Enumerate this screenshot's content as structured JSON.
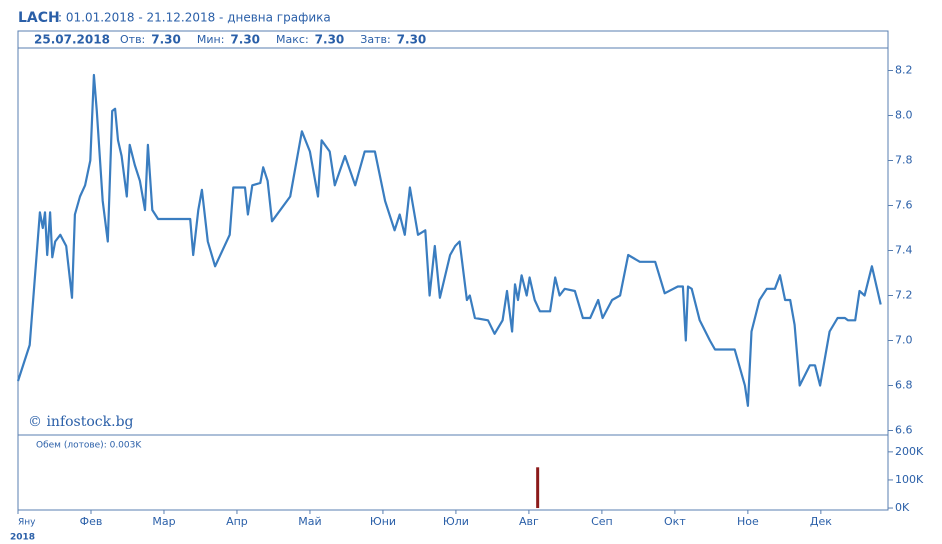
{
  "header": {
    "symbol": "LACH",
    "period": ": 01.01.2018 - 21.12.2018 - дневна графика",
    "date": "25.07.2018",
    "fields": [
      {
        "label": "Отв:",
        "value": "7.30"
      },
      {
        "label": "Мин:",
        "value": "7.30"
      },
      {
        "label": "Макс:",
        "value": "7.30"
      },
      {
        "label": "Затв:",
        "value": "7.30"
      }
    ],
    "watermark": "© infostock.bg"
  },
  "chart_data": [
    {
      "type": "line",
      "color": "#3a7dc0",
      "year_label": "2018",
      "xlim": [
        0,
        11.92
      ],
      "xticks": [
        {
          "value": 0,
          "label": "Яну"
        },
        {
          "value": 1,
          "label": "Фев"
        },
        {
          "value": 2,
          "label": "Мар"
        },
        {
          "value": 3,
          "label": "Апр"
        },
        {
          "value": 4,
          "label": "Май"
        },
        {
          "value": 5,
          "label": "Юни"
        },
        {
          "value": 6,
          "label": "Юли"
        },
        {
          "value": 7,
          "label": "Авг"
        },
        {
          "value": 8,
          "label": "Сеп"
        },
        {
          "value": 9,
          "label": "Окт"
        },
        {
          "value": 10,
          "label": "Ное"
        },
        {
          "value": 11,
          "label": "Дек"
        }
      ],
      "ylim": [
        6.58,
        8.3
      ],
      "yticks": [
        6.6,
        6.8,
        {
          "value": 7,
          "label": "7.0"
        },
        7.2,
        7.4,
        7.6,
        7.8,
        {
          "value": 8,
          "label": "8.0"
        },
        8.2
      ],
      "x": [
        0,
        0.16,
        0.3,
        0.34,
        0.37,
        0.4,
        0.44,
        0.47,
        0.51,
        0.58,
        0.66,
        0.74,
        0.78,
        0.85,
        0.92,
        0.99,
        1.04,
        1.08,
        1.16,
        1.23,
        1.29,
        1.33,
        1.37,
        1.42,
        1.49,
        1.53,
        1.6,
        1.67,
        1.74,
        1.78,
        1.84,
        1.92,
        2.36,
        2.4,
        2.47,
        2.52,
        2.6,
        2.7,
        2.9,
        2.95,
        3.11,
        3.15,
        3.21,
        3.32,
        3.36,
        3.42,
        3.48,
        3.73,
        3.89,
        4.0,
        4.11,
        4.16,
        4.27,
        4.34,
        4.48,
        4.62,
        4.75,
        4.89,
        5.03,
        5.16,
        5.23,
        5.3,
        5.37,
        5.48,
        5.58,
        5.64,
        5.71,
        5.78,
        5.92,
        5.99,
        6.05,
        6.15,
        6.19,
        6.26,
        6.44,
        6.53,
        6.64,
        6.7,
        6.77,
        6.81,
        6.85,
        6.9,
        6.97,
        7.01,
        7.08,
        7.15,
        7.29,
        7.36,
        7.42,
        7.49,
        7.63,
        7.74,
        7.84,
        7.95,
        8.01,
        8.14,
        8.25,
        8.36,
        8.52,
        8.73,
        8.86,
        9.04,
        9.11,
        9.15,
        9.18,
        9.23,
        9.34,
        9.48,
        9.55,
        9.82,
        9.96,
        10.0,
        10.05,
        10.16,
        10.26,
        10.37,
        10.44,
        10.51,
        10.58,
        10.64,
        10.71,
        10.85,
        10.92,
        10.99,
        11.12,
        11.23,
        11.33,
        11.37,
        11.47,
        11.53,
        11.6,
        11.7,
        11.82
      ],
      "values": [
        6.82,
        6.98,
        7.57,
        7.5,
        7.57,
        7.38,
        7.57,
        7.37,
        7.44,
        7.47,
        7.42,
        7.19,
        7.56,
        7.64,
        7.69,
        7.8,
        8.18,
        8.02,
        7.62,
        7.44,
        8.02,
        8.03,
        7.89,
        7.82,
        7.64,
        7.87,
        7.78,
        7.71,
        7.58,
        7.87,
        7.58,
        7.54,
        7.54,
        7.38,
        7.58,
        7.67,
        7.44,
        7.33,
        7.47,
        7.68,
        7.68,
        7.56,
        7.69,
        7.7,
        7.77,
        7.71,
        7.53,
        7.64,
        7.93,
        7.84,
        7.64,
        7.89,
        7.84,
        7.69,
        7.82,
        7.69,
        7.84,
        7.84,
        7.62,
        7.49,
        7.56,
        7.47,
        7.68,
        7.47,
        7.49,
        7.2,
        7.42,
        7.19,
        7.38,
        7.42,
        7.44,
        7.18,
        7.2,
        7.1,
        7.09,
        7.03,
        7.09,
        7.22,
        7.04,
        7.25,
        7.18,
        7.29,
        7.2,
        7.28,
        7.18,
        7.13,
        7.13,
        7.28,
        7.2,
        7.23,
        7.22,
        7.1,
        7.1,
        7.18,
        7.1,
        7.18,
        7.2,
        7.38,
        7.35,
        7.35,
        7.21,
        7.24,
        7.24,
        7.0,
        7.24,
        7.23,
        7.09,
        7.0,
        6.96,
        6.96,
        6.8,
        6.71,
        7.04,
        7.18,
        7.23,
        7.23,
        7.29,
        7.18,
        7.18,
        7.07,
        6.8,
        6.89,
        6.89,
        6.8,
        7.04,
        7.1,
        7.1,
        7.09,
        7.09,
        7.22,
        7.2,
        7.33,
        7.16
      ]
    },
    {
      "type": "bar",
      "title": "Обем (лотове): 0.003K",
      "color": "#8b1a1a",
      "xlim": [
        0,
        11.92
      ],
      "x": [
        7.12
      ],
      "values": [
        145000
      ],
      "ylim": [
        -7000,
        260000
      ],
      "yticks": [
        {
          "value": 0,
          "label": "0K"
        },
        {
          "value": 100000,
          "label": "100K"
        },
        {
          "value": 200000,
          "label": "200K"
        }
      ]
    }
  ]
}
